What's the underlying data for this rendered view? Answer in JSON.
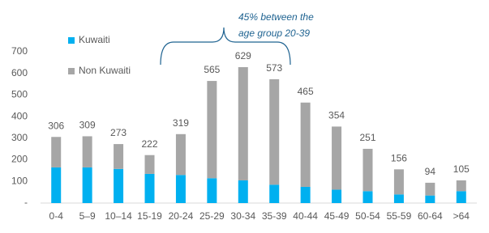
{
  "chart_data": {
    "type": "stacked_bar",
    "categories": [
      "0-4",
      "5–9",
      "10–14",
      "15-19",
      "20-24",
      "25-29",
      "30-34",
      "35-39",
      "40-44",
      "45-49",
      "50-54",
      "55-59",
      "60-64",
      ">64"
    ],
    "series": [
      {
        "name": "Kuwaiti",
        "color": "#00b0f0",
        "values": [
          165,
          165,
          158,
          135,
          130,
          115,
          105,
          85,
          75,
          62,
          55,
          40,
          35,
          55
        ]
      },
      {
        "name": "Non Kuwaiti",
        "color": "#a6a6a6",
        "values": [
          141,
          144,
          115,
          87,
          189,
          450,
          524,
          488,
          390,
          292,
          196,
          116,
          59,
          50
        ]
      }
    ],
    "totals": [
      306,
      309,
      273,
      222,
      319,
      565,
      629,
      573,
      465,
      354,
      251,
      156,
      94,
      105
    ],
    "annotation": [
      "45% between the",
      "age group 20-39"
    ],
    "ylim": [
      0,
      700
    ],
    "yticks": [
      {
        "value": 0,
        "label": "-"
      },
      100,
      200,
      300,
      400,
      500,
      600,
      700
    ],
    "grid": false
  }
}
